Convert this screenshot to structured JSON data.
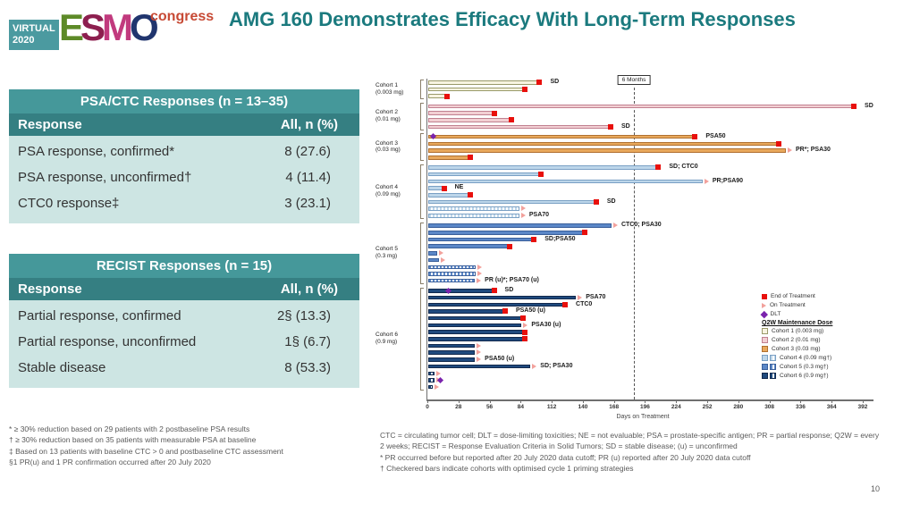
{
  "slide": {
    "logo": {
      "virtual": "VIRTUAL",
      "year": "2020",
      "esmo": [
        "E",
        "S",
        "M",
        "O"
      ],
      "congress": "congress"
    },
    "title": "AMG 160 Demonstrates Efficacy With Long-Term Responses",
    "page_number": "10"
  },
  "tables": [
    {
      "title": "PSA/CTC Responses (n = 13–35)",
      "col1": "Response",
      "col2": "All, n (%)",
      "rows": [
        {
          "label": "PSA response, confirmed*",
          "value": "8 (27.6)"
        },
        {
          "label": "PSA response, unconfirmed†",
          "value": "4 (11.4)"
        },
        {
          "label": "CTC0 response‡",
          "value": "3 (23.1)"
        }
      ]
    },
    {
      "title": "RECIST Responses (n = 15)",
      "col1": "Response",
      "col2": "All, n (%)",
      "rows": [
        {
          "label": "Partial response, confirmed",
          "value": "2§ (13.3)"
        },
        {
          "label": "Partial response, unconfirmed",
          "value": "1§ (6.7)"
        },
        {
          "label": "Stable disease",
          "value": "8 (53.3)"
        }
      ]
    }
  ],
  "footnotes_left": [
    "* ≥ 30% reduction based on 29 patients with 2 postbaseline PSA results",
    "† ≥ 30% reduction based on 35 patients with measurable PSA at baseline",
    "‡ Based on 13 patients with baseline CTC > 0 and postbaseline CTC assessment",
    "§1 PR(u) and 1 PR confirmation occurred after 20 July 2020"
  ],
  "footnotes_right": [
    "CTC = circulating tumor cell; DLT = dose-limiting toxicities; NE = not evaluable; PSA = prostate-specific antigen; PR = partial response; Q2W = every 2 weeks; RECIST = Response Evaluation Criteria in Solid Tumors; SD = stable disease; (u) = unconfirmed",
    "* PR occurred before but reported after 20 July 2020 data cutoff; PR (u) reported after 20 July 2020 data cutoff",
    "† Checkered bars indicate cohorts with optimised cycle 1 priming strategies"
  ],
  "chart_data": {
    "type": "swimmer-bar",
    "xlabel": "Days on Treatment",
    "x_ticks": [
      0,
      28,
      56,
      84,
      112,
      140,
      168,
      196,
      224,
      252,
      280,
      308,
      336,
      364,
      392
    ],
    "xlim": [
      0,
      400
    ],
    "six_month_line": {
      "label": "6 Months",
      "day": 186
    },
    "marker_colors": {
      "end_of_treatment": "#e8100c",
      "on_treatment": "#f2a19c",
      "dlt": "#7a23ad"
    },
    "legend": {
      "end_of_treatment": "End of Treatment",
      "on_treatment": "On Treatment",
      "dlt": "DLT",
      "dose_header": "Q2W Maintenance Dose",
      "cohorts": [
        {
          "label": "Cohort 1 (0.003 mg)",
          "dual": false
        },
        {
          "label": "Cohort 2 (0.01 mg)",
          "dual": false
        },
        {
          "label": "Cohort 3 (0.03 mg)",
          "dual": false
        },
        {
          "label": "Cohort 4 (0.09 mg†)",
          "dual": true
        },
        {
          "label": "Cohort 5 (0.3 mg†)",
          "dual": true
        },
        {
          "label": "Cohort 6 (0.9 mg†)",
          "dual": true
        }
      ]
    },
    "cohorts": [
      {
        "name": "Cohort 1",
        "dose": "(0.003 mg)",
        "fill": "#f7f3e0",
        "border": "#9a9a6a",
        "bars": [
          {
            "days": 101,
            "status": "end",
            "label": "SD"
          },
          {
            "days": 88,
            "status": "end",
            "label": ""
          },
          {
            "days": 18,
            "status": "end",
            "label": ""
          }
        ]
      },
      {
        "name": "Cohort 2",
        "dose": "(0.01 mg)",
        "fill": "#f2cfd3",
        "border": "#c08090",
        "bars": [
          {
            "days": 384,
            "status": "end",
            "label": "SD"
          },
          {
            "days": 60,
            "status": "end",
            "label": ""
          },
          {
            "days": 76,
            "status": "end",
            "label": ""
          },
          {
            "days": 165,
            "status": "end",
            "label": "SD"
          }
        ]
      },
      {
        "name": "Cohort 3",
        "dose": "(0.03 mg)",
        "fill": "#e8a85c",
        "border": "#b07030",
        "bars": [
          {
            "days": 241,
            "status": "end",
            "label": "PSA50",
            "dlt_day": 5
          },
          {
            "days": 316,
            "status": "end",
            "label": ""
          },
          {
            "days": 322,
            "status": "on",
            "label": "PR*; PSA30"
          },
          {
            "days": 39,
            "status": "end",
            "label": ""
          }
        ]
      },
      {
        "name": "Cohort 4",
        "dose": "(0.09 mg)",
        "fill": "#bdd6ea",
        "border": "#7aa0c4",
        "bars": [
          {
            "days": 208,
            "status": "end",
            "label": "SD; CTC0"
          },
          {
            "days": 102,
            "status": "end",
            "label": ""
          },
          {
            "days": 247,
            "status": "on",
            "label": "PR;PSA90"
          },
          {
            "days": 15,
            "status": "end",
            "label": "NE"
          },
          {
            "days": 39,
            "status": "end",
            "label": ""
          },
          {
            "days": 152,
            "status": "end",
            "label": "SD"
          },
          {
            "days": 82,
            "status": "on",
            "label": "",
            "hatched": true
          },
          {
            "days": 82,
            "status": "on",
            "label": "PSA70",
            "hatched": true
          }
        ]
      },
      {
        "name": "Cohort 5",
        "dose": "(0.3 mg)",
        "fill": "#5b87c7",
        "border": "#3a5f9a",
        "bars": [
          {
            "days": 165,
            "status": "on",
            "label": "CTC0; PSA30"
          },
          {
            "days": 142,
            "status": "end",
            "label": ""
          },
          {
            "days": 96,
            "status": "end",
            "label": "SD;PSA50"
          },
          {
            "days": 74,
            "status": "end",
            "label": ""
          },
          {
            "days": 8,
            "status": "on",
            "label": ""
          },
          {
            "days": 10,
            "status": "on",
            "label": ""
          },
          {
            "days": 43,
            "status": "on",
            "label": "",
            "hatched": true
          },
          {
            "days": 43,
            "status": "on",
            "label": "",
            "hatched": true
          },
          {
            "days": 42,
            "status": "on",
            "label": "PR (u)*; PSA70 (u)",
            "hatched": true
          }
        ]
      },
      {
        "name": "Cohort 6",
        "dose": "(0.9 mg)",
        "fill": "#1f4a7e",
        "border": "#12294d",
        "bars": [
          {
            "days": 60,
            "status": "end",
            "label": "SD",
            "dlt_day": 19
          },
          {
            "days": 133,
            "status": "on",
            "label": "PSA70"
          },
          {
            "days": 124,
            "status": "end",
            "label": "CTC0"
          },
          {
            "days": 70,
            "status": "end",
            "label": "PSA50 (u)"
          },
          {
            "days": 86,
            "status": "end",
            "label": ""
          },
          {
            "days": 84,
            "status": "on",
            "label": "PSA30 (u)"
          },
          {
            "days": 88,
            "status": "end",
            "label": ""
          },
          {
            "days": 88,
            "status": "end",
            "label": ""
          },
          {
            "days": 42,
            "status": "on",
            "label": ""
          },
          {
            "days": 42,
            "status": "on",
            "label": ""
          },
          {
            "days": 42,
            "status": "on",
            "label": "PSA50 (u)"
          },
          {
            "days": 92,
            "status": "on",
            "label": "SD; PSA30"
          },
          {
            "days": 6,
            "status": "on",
            "label": "",
            "hatched": true
          },
          {
            "days": 6,
            "status": "on",
            "label": "",
            "hatched": true,
            "dlt_day": 12
          },
          {
            "days": 4,
            "status": "on",
            "label": "",
            "hatched": true
          }
        ]
      }
    ]
  }
}
